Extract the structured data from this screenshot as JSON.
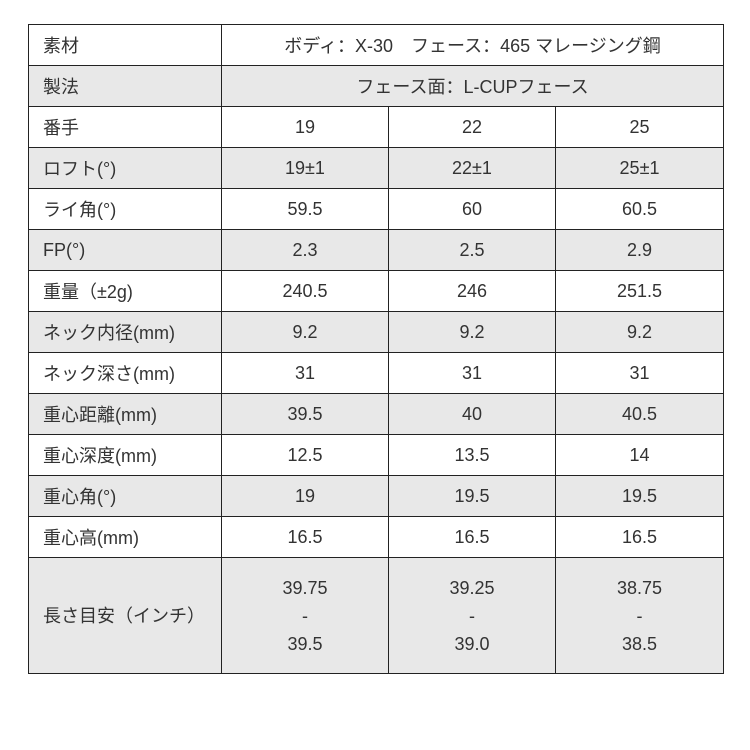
{
  "material": {
    "label": "素材",
    "value": "ボディ：X-30　フェース：465 マレージング鋼"
  },
  "method": {
    "label": "製法",
    "value": "フェース面：L-CUPフェース"
  },
  "rows": [
    {
      "label": "番手",
      "values": [
        "19",
        "22",
        "25"
      ]
    },
    {
      "label": "ロフト(°)",
      "values": [
        "19±1",
        "22±1",
        "25±1"
      ]
    },
    {
      "label": "ライ角(°)",
      "values": [
        "59.5",
        "60",
        "60.5"
      ]
    },
    {
      "label": "FP(°)",
      "values": [
        "2.3",
        "2.5",
        "2.9"
      ]
    },
    {
      "label": "重量（±2g)",
      "values": [
        "240.5",
        "246",
        "251.5"
      ]
    },
    {
      "label": "ネック内径(mm)",
      "values": [
        "9.2",
        "9.2",
        "9.2"
      ]
    },
    {
      "label": "ネック深さ(mm)",
      "values": [
        "31",
        "31",
        "31"
      ]
    },
    {
      "label": "重心距離(mm)",
      "values": [
        "39.5",
        "40",
        "40.5"
      ]
    },
    {
      "label": "重心深度(mm)",
      "values": [
        "12.5",
        "13.5",
        "14"
      ]
    },
    {
      "label": "重心角(°)",
      "values": [
        "19",
        "19.5",
        "19.5"
      ]
    },
    {
      "label": "重心高(mm)",
      "values": [
        "16.5",
        "16.5",
        "16.5"
      ]
    }
  ],
  "length": {
    "label": "長さ目安（インチ）",
    "values": [
      {
        "max": "39.75",
        "sep": "-",
        "min": "39.5"
      },
      {
        "max": "39.25",
        "sep": "-",
        "min": "39.0"
      },
      {
        "max": "38.75",
        "sep": "-",
        "min": "38.5"
      }
    ]
  },
  "colors": {
    "stripe": "#e8e8e8",
    "border": "#222222",
    "text": "#333333"
  }
}
